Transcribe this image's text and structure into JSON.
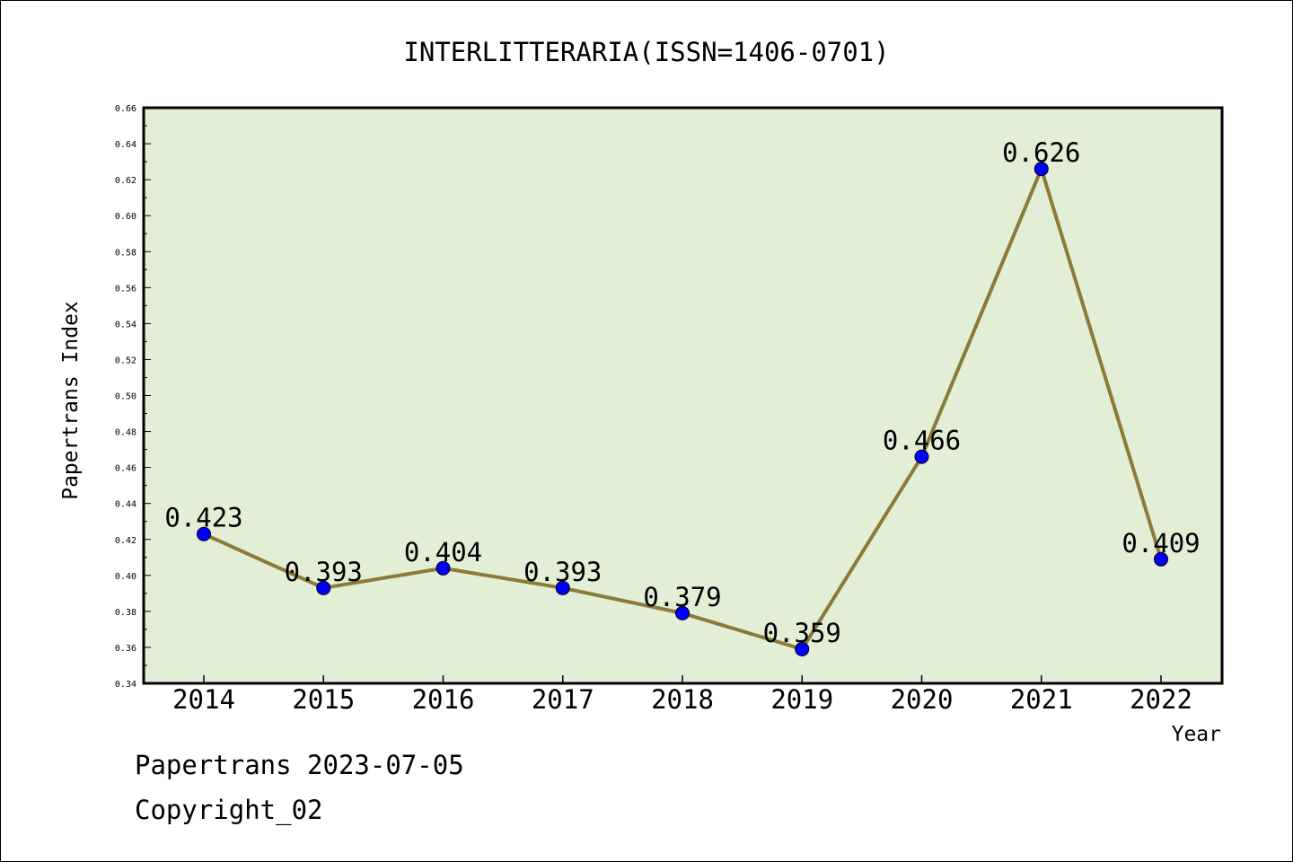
{
  "chart_data": {
    "type": "line",
    "title": "INTERLITTERARIA(ISSN=1406-0701)",
    "xlabel": "Year",
    "ylabel": "Papertrans Index",
    "categories": [
      "2014",
      "2015",
      "2016",
      "2017",
      "2018",
      "2019",
      "2020",
      "2021",
      "2022"
    ],
    "series": [
      {
        "values": [
          0.423,
          0.393,
          0.404,
          0.393,
          0.379,
          0.359,
          0.466,
          0.626,
          0.409
        ],
        "labels": [
          "0.423",
          "0.393",
          "0.404",
          "0.393",
          "0.379",
          "0.359",
          "0.466",
          "0.626",
          "0.409"
        ]
      }
    ],
    "ylim": [
      0.34,
      0.66
    ],
    "yticks": [
      "0.34",
      "0.36",
      "0.38",
      "0.40",
      "0.42",
      "0.44",
      "0.46",
      "0.48",
      "0.50",
      "0.52",
      "0.54",
      "0.56",
      "0.58",
      "0.60",
      "0.62",
      "0.64",
      "0.66"
    ],
    "grid": false,
    "colors": {
      "plot_background": "#e2efd6",
      "line": "#8b7a38",
      "marker": "#0000ff"
    }
  },
  "footer": {
    "source": "Papertrans 2023-07-05",
    "copyright": "Copyright_02"
  }
}
